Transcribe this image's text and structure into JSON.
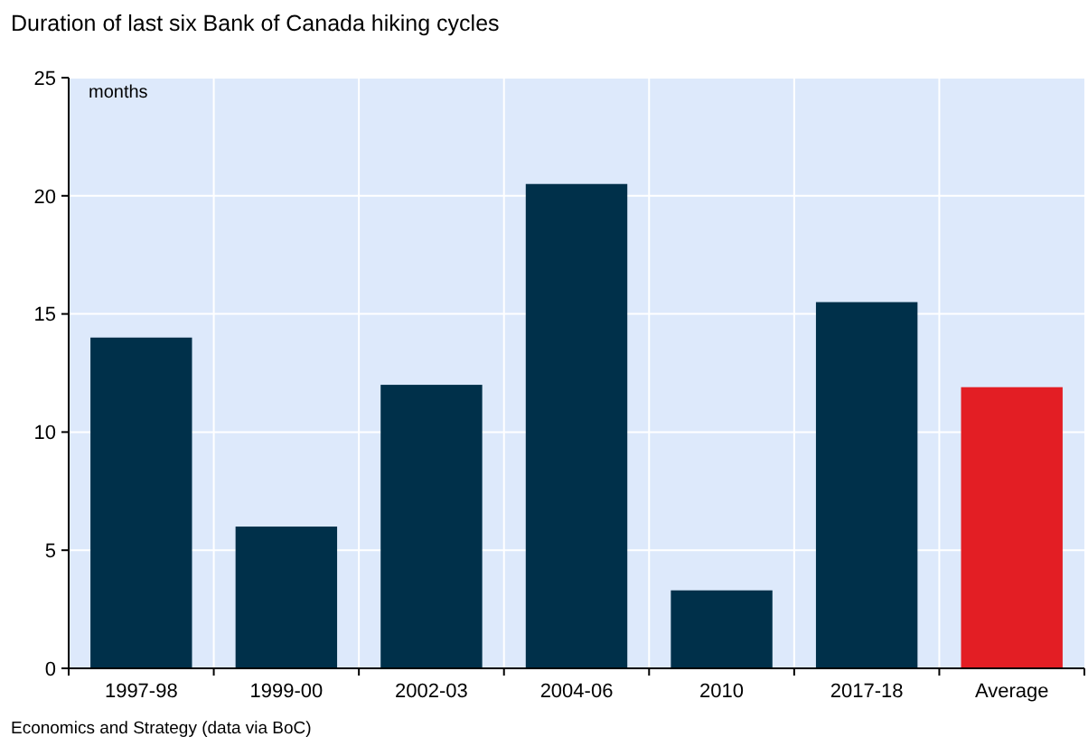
{
  "chart_data": {
    "type": "bar",
    "title": "Duration of last six Bank of Canada hiking cycles",
    "ylabel": "months",
    "categories": [
      "1997-98",
      "1999-00",
      "2002-03",
      "2004-06",
      "2010",
      "2017-18",
      "Average"
    ],
    "values": [
      14,
      6,
      12,
      20.5,
      3.3,
      15.5,
      11.9
    ],
    "colors": [
      "#00304a",
      "#00304a",
      "#00304a",
      "#00304a",
      "#00304a",
      "#00304a",
      "#e31e24"
    ],
    "ylim": [
      0,
      25
    ],
    "yticks": [
      0,
      5,
      10,
      15,
      20,
      25
    ],
    "grid": true,
    "annotations": [
      "Economics and Strategy (data via BoC)"
    ]
  }
}
